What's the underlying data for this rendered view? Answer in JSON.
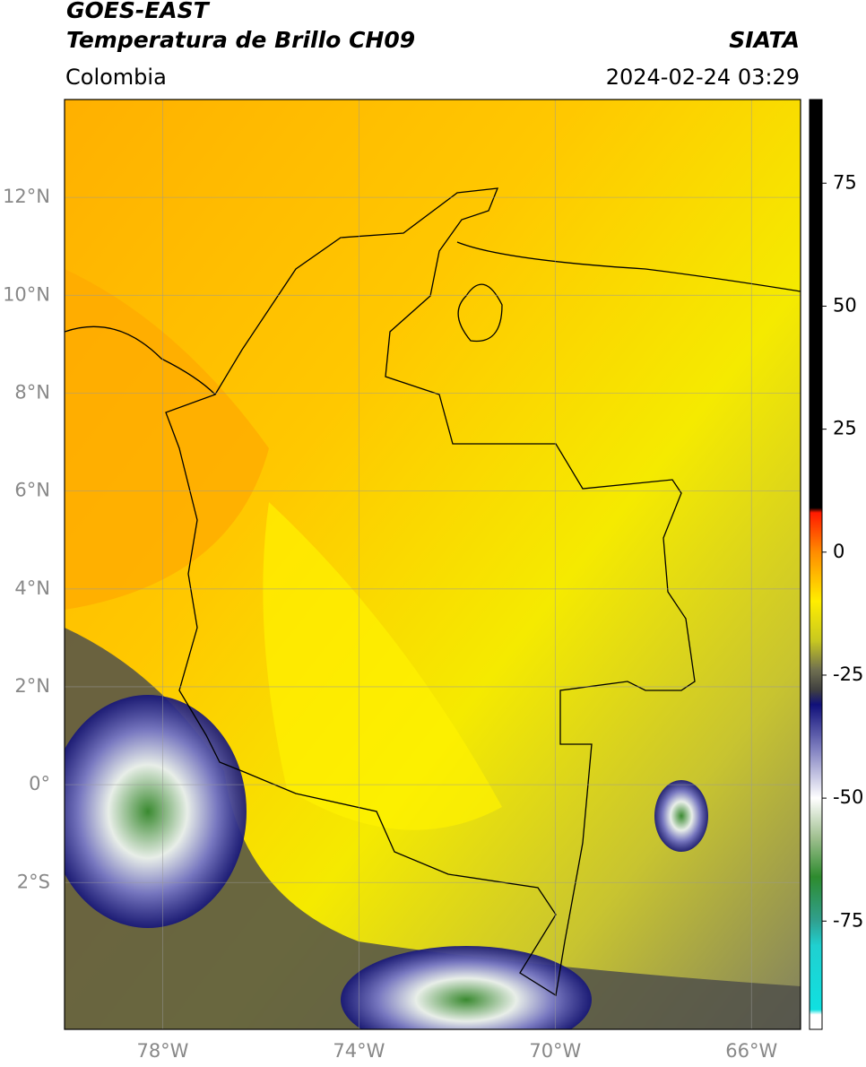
{
  "header": {
    "title": "GOES-EAST",
    "subtitle": "Temperatura de Brillo CH09",
    "source": "SIATA",
    "region": "Colombia",
    "timestamp": "2024-02-24 03:29"
  },
  "map": {
    "xlim": [
      -80,
      -65
    ],
    "ylim": [
      -5,
      14
    ],
    "xticks": [
      {
        "value": -78,
        "label": "78°W"
      },
      {
        "value": -74,
        "label": "74°W"
      },
      {
        "value": -70,
        "label": "70°W"
      },
      {
        "value": -66,
        "label": "66°W"
      }
    ],
    "yticks": [
      {
        "value": 12,
        "label": "12°N"
      },
      {
        "value": 10,
        "label": "10°N"
      },
      {
        "value": 8,
        "label": "8°N"
      },
      {
        "value": 6,
        "label": "6°N"
      },
      {
        "value": 4,
        "label": "4°N"
      },
      {
        "value": 2,
        "label": "2°N"
      },
      {
        "value": 0,
        "label": "0°"
      },
      {
        "value": -2,
        "label": "2°S"
      }
    ],
    "grid": true
  },
  "colorbar": {
    "lim": [
      -97,
      92
    ],
    "ticks": [
      75,
      50,
      25,
      0,
      -25,
      -50,
      -75
    ],
    "stops": [
      {
        "value": 92,
        "color": "#000000"
      },
      {
        "value": 9,
        "color": "#000000"
      },
      {
        "value": 8,
        "color": "#ff1a00"
      },
      {
        "value": 0,
        "color": "#ff8c00"
      },
      {
        "value": -10,
        "color": "#ffee00"
      },
      {
        "value": -18,
        "color": "#c8c820"
      },
      {
        "value": -24,
        "color": "#6e6e50"
      },
      {
        "value": -28,
        "color": "#404040"
      },
      {
        "value": -31,
        "color": "#10107a"
      },
      {
        "value": -40,
        "color": "#8080c0"
      },
      {
        "value": -50,
        "color": "#ffffff"
      },
      {
        "value": -58,
        "color": "#a0c090"
      },
      {
        "value": -66,
        "color": "#2e8b2e"
      },
      {
        "value": -75,
        "color": "#30a090"
      },
      {
        "value": -80,
        "color": "#20d0d0"
      },
      {
        "value": -93,
        "color": "#10e0e0"
      },
      {
        "value": -94,
        "color": "#ffffff"
      },
      {
        "value": -97,
        "color": "#ffffff"
      }
    ]
  }
}
